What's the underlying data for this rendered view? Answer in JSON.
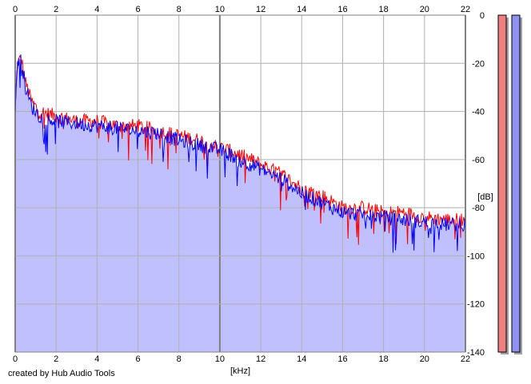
{
  "footer": {
    "credit": "created by Hub Audio Tools"
  },
  "colors": {
    "fill": "#c0c0ff",
    "left": "#ff0000",
    "right": "#0000ff",
    "grid": "#b0b0b0",
    "grid_major": "#808080",
    "meter_left": "#f08080",
    "meter_right": "#9090f0"
  },
  "chart_data": {
    "type": "line",
    "xlabel": "[kHz]",
    "ylabel": "[dB]",
    "xlim": [
      0,
      22
    ],
    "ylim": [
      -140,
      0
    ],
    "xticks": [
      0,
      2,
      4,
      6,
      8,
      10,
      12,
      14,
      16,
      18,
      20,
      22
    ],
    "yticks": [
      0,
      -20,
      -40,
      -60,
      -80,
      -100,
      -120,
      -140
    ],
    "grid": true,
    "series": [
      {
        "color": "#ff0000",
        "x": [
          0,
          0.1,
          0.3,
          0.5,
          0.8,
          1.2,
          2,
          3,
          4,
          5,
          6,
          7,
          8,
          9,
          10,
          11,
          12,
          13,
          14,
          15,
          16,
          17,
          18,
          19,
          20,
          21,
          22
        ],
        "values": [
          -41,
          -20,
          -18,
          -28,
          -36,
          -40,
          -42,
          -44,
          -44,
          -46,
          -46,
          -48,
          -50,
          -52,
          -55,
          -58,
          -62,
          -66,
          -72,
          -75,
          -80,
          -80,
          -82,
          -82,
          -84,
          -85,
          -85
        ]
      },
      {
        "color": "#0000ff",
        "x": [
          0,
          0.1,
          0.3,
          0.5,
          0.8,
          1.2,
          2,
          3,
          4,
          5,
          6,
          7,
          8,
          9,
          10,
          11,
          12,
          13,
          14,
          15,
          16,
          17,
          18,
          19,
          20,
          21,
          22
        ],
        "values": [
          -42,
          -19,
          -18,
          -30,
          -38,
          -42,
          -44,
          -45,
          -46,
          -47,
          -48,
          -49,
          -52,
          -54,
          -56,
          -60,
          -64,
          -68,
          -74,
          -78,
          -82,
          -83,
          -84,
          -85,
          -86,
          -87,
          -87
        ]
      }
    ],
    "meters": {
      "left": 0,
      "right": 0
    }
  }
}
